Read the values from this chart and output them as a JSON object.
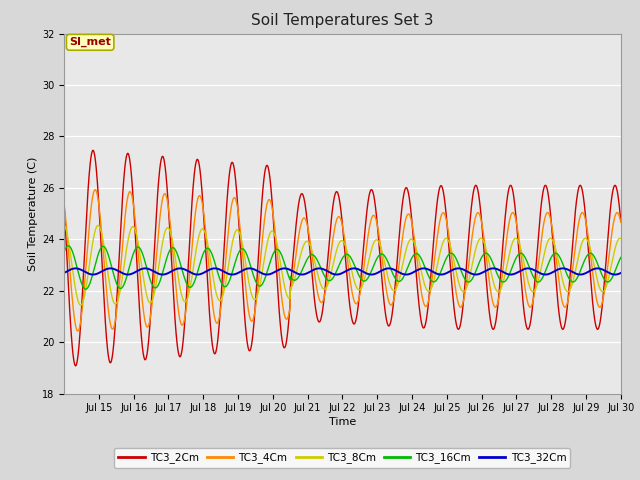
{
  "title": "Soil Temperatures Set 3",
  "xlabel": "Time",
  "ylabel": "Soil Temperature (C)",
  "ylim": [
    18,
    32
  ],
  "yticks": [
    18,
    20,
    22,
    24,
    26,
    28,
    30,
    32
  ],
  "series_labels": [
    "TC3_2Cm",
    "TC3_4Cm",
    "TC3_8Cm",
    "TC3_16Cm",
    "TC3_32Cm"
  ],
  "series_colors": [
    "#cc0000",
    "#ff8800",
    "#cccc00",
    "#00bb00",
    "#0000cc"
  ],
  "annotation_text": "SI_met",
  "fig_bg_color": "#d8d8d8",
  "plot_bg_color": "#e8e8e8",
  "title_fontsize": 11,
  "axis_label_fontsize": 8,
  "tick_fontsize": 7,
  "x_tick_labels": [
    "Jul 15",
    "Jul 16",
    "Jul 17",
    "Jul 18",
    "Jul 19",
    "Jul 20",
    "Jul 21",
    "Jul 22",
    "Jul 23",
    "Jul 24",
    "Jul 25",
    "Jul 26",
    "Jul 27",
    "Jul 28",
    "Jul 29",
    "Jul 30"
  ]
}
